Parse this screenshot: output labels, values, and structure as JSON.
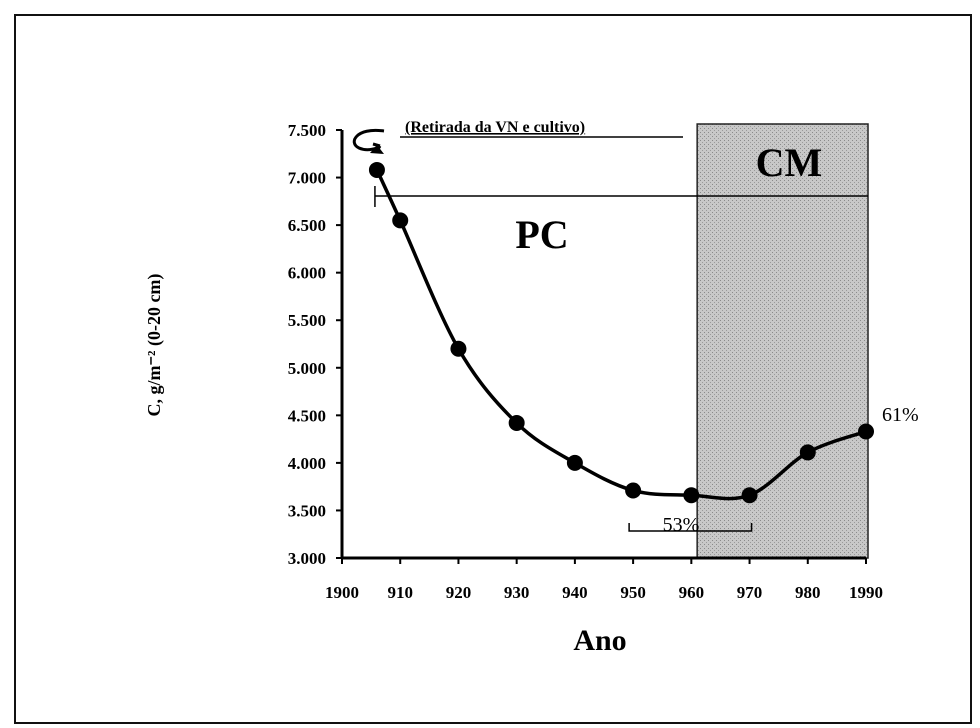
{
  "chart_data": {
    "type": "line",
    "xlabel": "Ano",
    "ylabel": "C, g/m⁻² (0-20 cm)",
    "x_tick_labels": [
      "1900",
      "910",
      "920",
      "930",
      "940",
      "950",
      "960",
      "970",
      "980",
      "1990"
    ],
    "x_tick_values": [
      1900,
      1910,
      1920,
      1930,
      1940,
      1950,
      1960,
      1970,
      1980,
      1990
    ],
    "y_tick_labels": [
      "7.500",
      "7.000",
      "6.500",
      "6.000",
      "5.500",
      "5.000",
      "4.500",
      "4.000",
      "3.500",
      "3.000"
    ],
    "y_tick_values": [
      7500,
      7000,
      6500,
      6000,
      5500,
      5000,
      4500,
      4000,
      3500,
      3000
    ],
    "xlim": [
      1900,
      1990
    ],
    "ylim": [
      3000,
      7500
    ],
    "grid": false,
    "series": [
      {
        "x": [
          1906,
          1910,
          1920,
          1930,
          1940,
          1950,
          1960,
          1970,
          1980,
          1990
        ],
        "y": [
          7080,
          6550,
          5200,
          4420,
          4000,
          3710,
          3660,
          3660,
          4110,
          4330
        ]
      }
    ],
    "regions": [
      {
        "label": "PC",
        "from": 1906,
        "to": 1961
      },
      {
        "label": "CM",
        "from": 1961,
        "to": 1990
      }
    ],
    "annotations": {
      "top": "(Retirada da VN e cultivo)",
      "start_pct": "53%",
      "end_pct": "61%"
    }
  }
}
